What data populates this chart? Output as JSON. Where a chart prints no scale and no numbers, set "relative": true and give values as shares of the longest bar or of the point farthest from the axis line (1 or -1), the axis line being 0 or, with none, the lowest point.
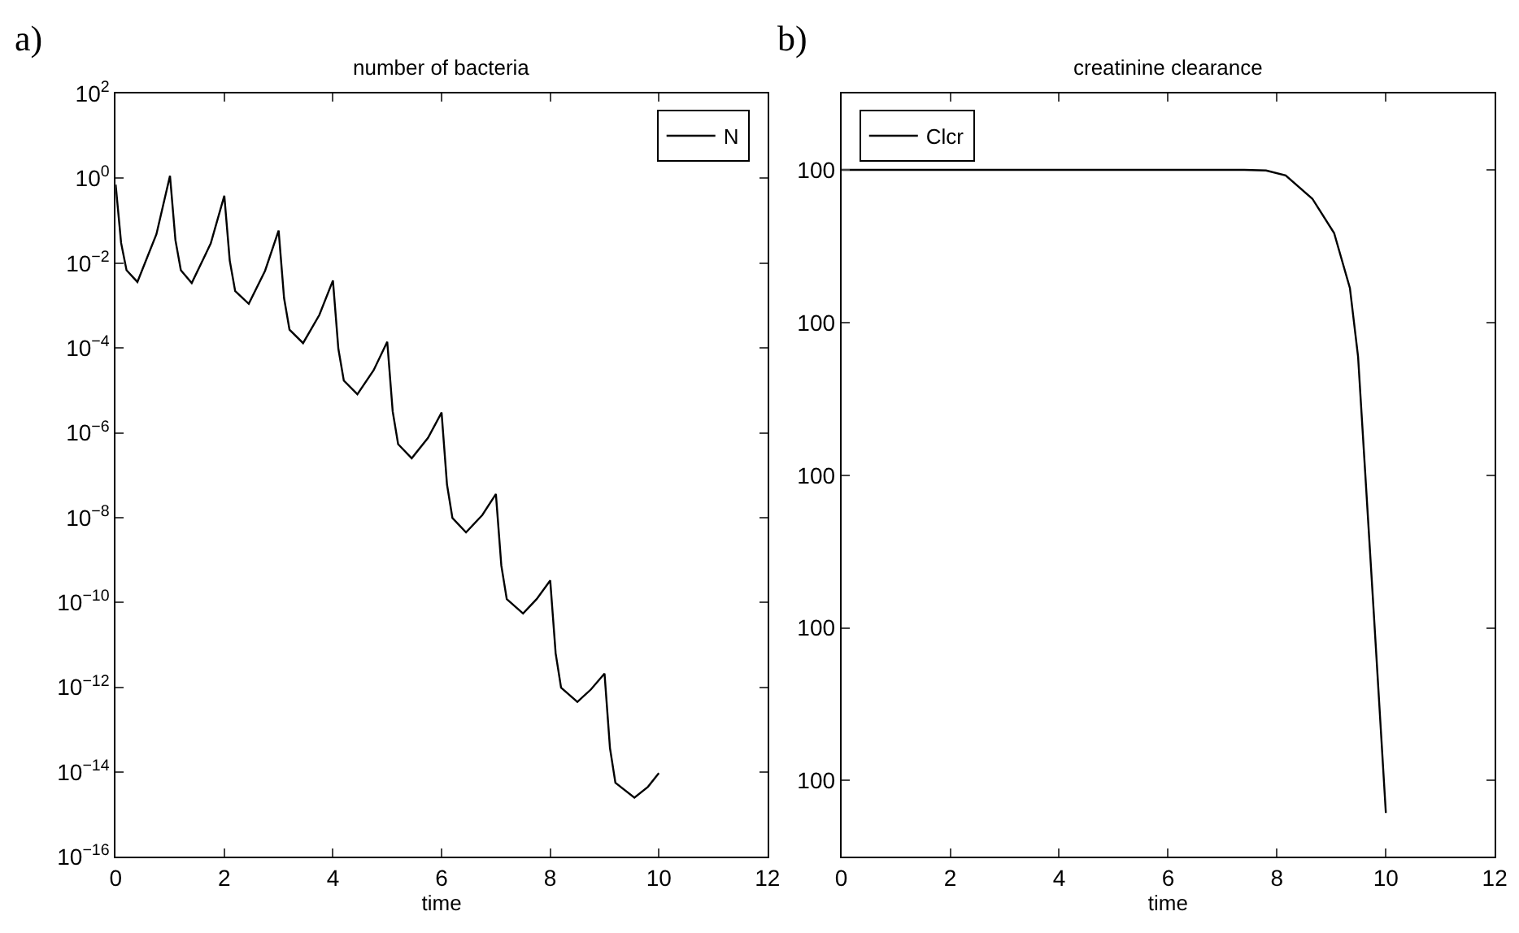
{
  "chart_data": [
    {
      "type": "line",
      "title": "number of bacteria",
      "xlabel": "time",
      "annotations": [
        "a)"
      ],
      "log": "y",
      "legend": "top right",
      "marker": "none",
      "line_style": "solid",
      "xlim": [
        0,
        12
      ],
      "xticks": [
        0,
        2,
        4,
        6,
        8,
        10,
        12
      ],
      "ylim": [
        1e-16,
        100.0
      ],
      "yticks": [
        {
          "value": 1e-16,
          "label": "10$^{−16}$"
        },
        {
          "value": 1e-14,
          "label": "10$^{−14}$"
        },
        {
          "value": 1e-12,
          "label": "10$^{−12}$"
        },
        {
          "value": 1e-10,
          "label": "10$^{−10}$"
        },
        {
          "value": 1e-08,
          "label": "10$^{−8}$"
        },
        {
          "value": 1e-06,
          "label": "10$^{−6}$"
        },
        {
          "value": 0.0001,
          "label": "10$^{−4}$"
        },
        {
          "value": 0.01,
          "label": "10$^{−2}$"
        },
        {
          "value": 1,
          "label": "10$^{0}$"
        },
        {
          "value": 100.0,
          "label": "10$^{2}$"
        }
      ],
      "series": [
        {
          "name": "N",
          "color": "#000000",
          "x": [
            0,
            0.1,
            0.2,
            0.4,
            0.75,
            1,
            1.1,
            1.2,
            1.4,
            1.75,
            2,
            2.1,
            2.2,
            2.45,
            2.75,
            3,
            3.1,
            3.2,
            3.45,
            3.75,
            4,
            4.1,
            4.2,
            4.45,
            4.75,
            5,
            5.1,
            5.2,
            5.45,
            5.75,
            6,
            6.1,
            6.2,
            6.45,
            6.75,
            7,
            7.1,
            7.2,
            7.5,
            7.75,
            8,
            8.1,
            8.2,
            8.5,
            8.75,
            9,
            9.1,
            9.2,
            9.55,
            9.8,
            10
          ],
          "values": [
            0.71,
            0.03,
            0.0068,
            0.0036,
            0.048,
            1.15,
            0.035,
            0.0068,
            0.0034,
            0.029,
            0.39,
            0.0115,
            0.0022,
            0.0011,
            0.0066,
            0.059,
            0.0015,
            0.00027,
            0.00013,
            0.0006,
            0.0039,
            9.5e-05,
            1.7e-05,
            8.1e-06,
            3e-05,
            0.00014,
            3.2e-06,
            5.4e-07,
            2.5e-07,
            7.6e-07,
            3e-06,
            6e-08,
            9.8e-09,
            4.5e-09,
            1.15e-08,
            3.6e-08,
            7.4e-10,
            1.2e-10,
            5.5e-11,
            1.2e-10,
            3.3e-10,
            6.3e-12,
            9.8e-13,
            4.5e-13,
            8.9e-13,
            2.1e-12,
            3.7e-14,
            5.6e-15,
            2.5e-15,
            4.5e-15,
            9.5e-15
          ]
        }
      ]
    },
    {
      "type": "line",
      "title": "creatinine clearance",
      "xlabel": "time",
      "annotations": [
        "b)",
        "100",
        "100",
        "100",
        "100",
        "100"
      ],
      "relative": true,
      "legend": "top left",
      "marker": "none",
      "line_style": "solid",
      "xlim": [
        0,
        12
      ],
      "xticks": [
        0,
        2,
        4,
        6,
        8,
        10,
        12
      ],
      "series": [
        {
          "name": "Clcr",
          "color": "#000000",
          "x": [
            0,
            7.4,
            7.8,
            8.16,
            8.65,
            9.05,
            9.34,
            9.49,
            9.62,
            9.78,
            10
          ],
          "values": [
            1,
            1,
            0.999,
            0.992,
            0.958,
            0.908,
            0.828,
            0.728,
            0.56,
            0.353,
            0.064
          ]
        }
      ]
    }
  ]
}
